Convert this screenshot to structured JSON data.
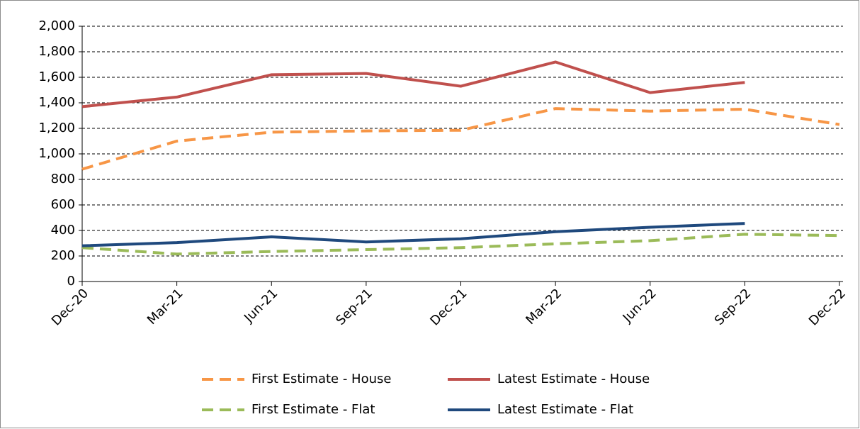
{
  "chart_data": {
    "type": "line",
    "categories": [
      "Dec-20",
      "Mar-21",
      "Jun-21",
      "Sep-21",
      "Dec-21",
      "Mar-22",
      "Jun-22",
      "Sep-22",
      "Dec-22"
    ],
    "series": [
      {
        "name": "First Estimate - House",
        "color": "#f79646",
        "style": "dashed",
        "values": [
          880,
          1100,
          1170,
          1180,
          1185,
          1355,
          1335,
          1350,
          1230
        ]
      },
      {
        "name": "Latest Estimate - House",
        "color": "#c0504d",
        "style": "solid",
        "values": [
          1370,
          1445,
          1620,
          1630,
          1530,
          1720,
          1480,
          1560,
          null
        ]
      },
      {
        "name": "First Estimate - Flat",
        "color": "#9bbb59",
        "style": "dashed",
        "values": [
          265,
          215,
          235,
          250,
          265,
          295,
          320,
          370,
          360
        ]
      },
      {
        "name": "Latest Estimate - Flat",
        "color": "#1f497d",
        "style": "solid",
        "values": [
          280,
          305,
          350,
          310,
          335,
          390,
          425,
          455,
          null
        ]
      }
    ],
    "ylim": [
      0,
      2000
    ],
    "yticks": [
      0,
      200,
      400,
      600,
      800,
      {
        "value": 1000,
        "label": "1,000"
      },
      {
        "value": 1200,
        "label": "1,200"
      },
      {
        "value": 1400,
        "label": "1,400"
      },
      {
        "value": 1600,
        "label": "1,600"
      },
      {
        "value": 1800,
        "label": "1,800"
      },
      {
        "value": 2000,
        "label": "2,000"
      }
    ],
    "grid": true
  }
}
